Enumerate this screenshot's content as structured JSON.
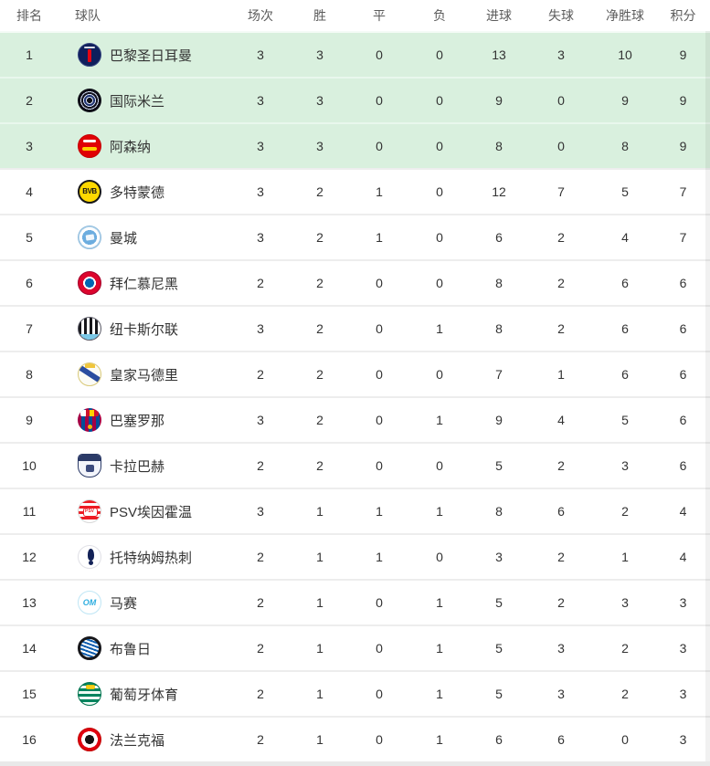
{
  "colors": {
    "qualify_zone_bg": "#d9f0de",
    "qualify_zone_separator": "#e9f7ed",
    "row_separator": "#ededed",
    "header_text": "#5c5c5c",
    "cell_text": "#333333",
    "bottom_strip": "#e9e9e9"
  },
  "table": {
    "columns": [
      {
        "key": "rank",
        "label": "排名"
      },
      {
        "key": "team",
        "label": "球队"
      },
      {
        "key": "played",
        "label": "场次"
      },
      {
        "key": "win",
        "label": "胜"
      },
      {
        "key": "draw",
        "label": "平"
      },
      {
        "key": "loss",
        "label": "负"
      },
      {
        "key": "gf",
        "label": "进球"
      },
      {
        "key": "ga",
        "label": "失球"
      },
      {
        "key": "gd",
        "label": "净胜球"
      },
      {
        "key": "pts",
        "label": "积分"
      }
    ],
    "rows": [
      {
        "rank": "1",
        "team": "巴黎圣日耳曼",
        "logo": "psg",
        "logo_text": "",
        "played": "3",
        "win": "3",
        "draw": "0",
        "loss": "0",
        "gf": "13",
        "ga": "3",
        "gd": "10",
        "pts": "9",
        "qualified": true
      },
      {
        "rank": "2",
        "team": "国际米兰",
        "logo": "inter",
        "logo_text": "",
        "played": "3",
        "win": "3",
        "draw": "0",
        "loss": "0",
        "gf": "9",
        "ga": "0",
        "gd": "9",
        "pts": "9",
        "qualified": true
      },
      {
        "rank": "3",
        "team": "阿森纳",
        "logo": "arsenal",
        "logo_text": "",
        "played": "3",
        "win": "3",
        "draw": "0",
        "loss": "0",
        "gf": "8",
        "ga": "0",
        "gd": "8",
        "pts": "9",
        "qualified": true
      },
      {
        "rank": "4",
        "team": "多特蒙德",
        "logo": "bvb",
        "logo_text": "BVB",
        "played": "3",
        "win": "2",
        "draw": "1",
        "loss": "0",
        "gf": "12",
        "ga": "7",
        "gd": "5",
        "pts": "7",
        "qualified": false
      },
      {
        "rank": "5",
        "team": "曼城",
        "logo": "mancity",
        "logo_text": "",
        "played": "3",
        "win": "2",
        "draw": "1",
        "loss": "0",
        "gf": "6",
        "ga": "2",
        "gd": "4",
        "pts": "7",
        "qualified": false
      },
      {
        "rank": "6",
        "team": "拜仁慕尼黑",
        "logo": "bayern",
        "logo_text": "",
        "played": "2",
        "win": "2",
        "draw": "0",
        "loss": "0",
        "gf": "8",
        "ga": "2",
        "gd": "6",
        "pts": "6",
        "qualified": false
      },
      {
        "rank": "7",
        "team": "纽卡斯尔联",
        "logo": "newcastle",
        "logo_text": "",
        "played": "3",
        "win": "2",
        "draw": "0",
        "loss": "1",
        "gf": "8",
        "ga": "2",
        "gd": "6",
        "pts": "6",
        "qualified": false
      },
      {
        "rank": "8",
        "team": "皇家马德里",
        "logo": "realmadrid",
        "logo_text": "",
        "played": "2",
        "win": "2",
        "draw": "0",
        "loss": "0",
        "gf": "7",
        "ga": "1",
        "gd": "6",
        "pts": "6",
        "qualified": false
      },
      {
        "rank": "9",
        "team": "巴塞罗那",
        "logo": "barcelona",
        "logo_text": "",
        "played": "3",
        "win": "2",
        "draw": "0",
        "loss": "1",
        "gf": "9",
        "ga": "4",
        "gd": "5",
        "pts": "6",
        "qualified": false
      },
      {
        "rank": "10",
        "team": "卡拉巴赫",
        "logo": "qarabag",
        "logo_text": "",
        "played": "2",
        "win": "2",
        "draw": "0",
        "loss": "0",
        "gf": "5",
        "ga": "2",
        "gd": "3",
        "pts": "6",
        "qualified": false
      },
      {
        "rank": "11",
        "team": "PSV埃因霍温",
        "logo": "psv",
        "logo_text": "PSV",
        "played": "3",
        "win": "1",
        "draw": "1",
        "loss": "1",
        "gf": "8",
        "ga": "6",
        "gd": "2",
        "pts": "4",
        "qualified": false
      },
      {
        "rank": "12",
        "team": "托特纳姆热刺",
        "logo": "tottenham",
        "logo_text": "",
        "played": "2",
        "win": "1",
        "draw": "1",
        "loss": "0",
        "gf": "3",
        "ga": "2",
        "gd": "1",
        "pts": "4",
        "qualified": false
      },
      {
        "rank": "13",
        "team": "马赛",
        "logo": "marseille",
        "logo_text": "OM",
        "played": "2",
        "win": "1",
        "draw": "0",
        "loss": "1",
        "gf": "5",
        "ga": "2",
        "gd": "3",
        "pts": "3",
        "qualified": false
      },
      {
        "rank": "14",
        "team": "布鲁日",
        "logo": "brugge",
        "logo_text": "",
        "played": "2",
        "win": "1",
        "draw": "0",
        "loss": "1",
        "gf": "5",
        "ga": "3",
        "gd": "2",
        "pts": "3",
        "qualified": false
      },
      {
        "rank": "15",
        "team": "葡萄牙体育",
        "logo": "sporting",
        "logo_text": "",
        "played": "2",
        "win": "1",
        "draw": "0",
        "loss": "1",
        "gf": "5",
        "ga": "3",
        "gd": "2",
        "pts": "3",
        "qualified": false
      },
      {
        "rank": "16",
        "team": "法兰克福",
        "logo": "frankfurt",
        "logo_text": "",
        "played": "2",
        "win": "1",
        "draw": "0",
        "loss": "1",
        "gf": "6",
        "ga": "6",
        "gd": "0",
        "pts": "3",
        "qualified": false
      }
    ]
  }
}
